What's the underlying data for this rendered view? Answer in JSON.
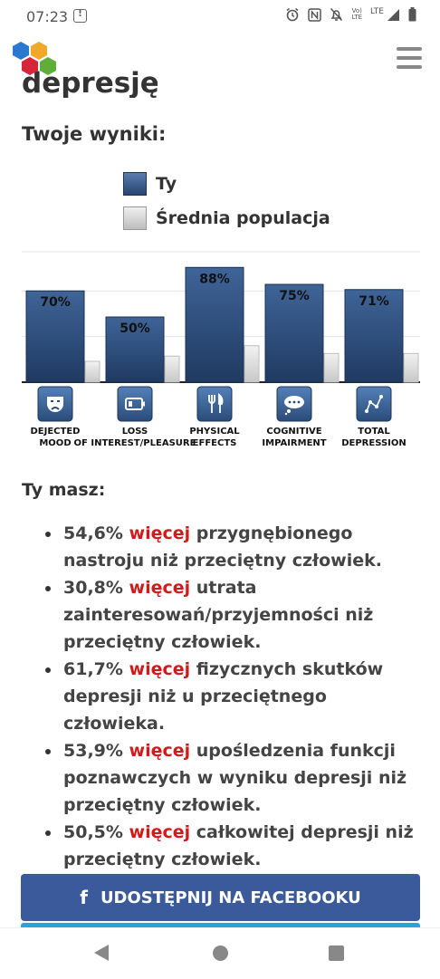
{
  "status_bar": {
    "time": "07:23",
    "volte_line1": "Vo)",
    "volte_line2": "LTE",
    "lte": "LTE"
  },
  "header": {
    "title_fragment": "depresję"
  },
  "results_title": "Twoje wyniki:",
  "legend": {
    "you": "Ty",
    "average": "Średnia populacja"
  },
  "chart_data": {
    "type": "bar",
    "categories": [
      "DEJECTED MOOD",
      "LOSS OF INTEREST/PLEASURE",
      "PHYSICAL EFFECTS",
      "COGNITIVE IMPAIRMENT",
      "TOTAL DEPRESSION"
    ],
    "series": [
      {
        "name": "Ty",
        "values": [
          70,
          50,
          88,
          75,
          71
        ],
        "color": "#2b4c7a"
      },
      {
        "name": "Średnia populacja",
        "values": [
          16,
          20,
          28,
          22,
          22
        ],
        "color": "#d6d6d6"
      }
    ],
    "data_labels": [
      "70%",
      "50%",
      "88%",
      "75%",
      "71%"
    ],
    "icons": [
      "masks-icon",
      "battery-icon",
      "fork-knife-icon",
      "thought-bubble-icon",
      "chart-line-icon"
    ],
    "ylim": [
      0,
      100
    ],
    "grid": true
  },
  "you_have_title": "Ty masz:",
  "results": [
    {
      "pre": "54,6% ",
      "hl": "więcej",
      "post": " przygnębionego nastroju niż przeciętny człowiek."
    },
    {
      "pre": "30,8% ",
      "hl": "więcej",
      "post": " utrata zainteresowań/przyjemności niż przeciętny człowiek."
    },
    {
      "pre": "61,7% ",
      "hl": "więcej",
      "post": " fizycznych skutków depresji niż u przeciętnego człowieka."
    },
    {
      "pre": "53,9% ",
      "hl": "więcej",
      "post": " upośledzenia funkcji poznawczych w wyniku depresji niż przeciętny człowiek."
    },
    {
      "pre": "50,5% ",
      "hl": "więcej",
      "post": " całkowitej depresji niż przeciętny człowiek."
    }
  ],
  "facebook_button": {
    "icon": "f",
    "label": "UDOSTĘPNIJ NA FACEBOOKU"
  },
  "colors": {
    "accent_red": "#d31a1a",
    "facebook_blue": "#3b5a9b",
    "bar_blue": "#2b4c7a"
  }
}
